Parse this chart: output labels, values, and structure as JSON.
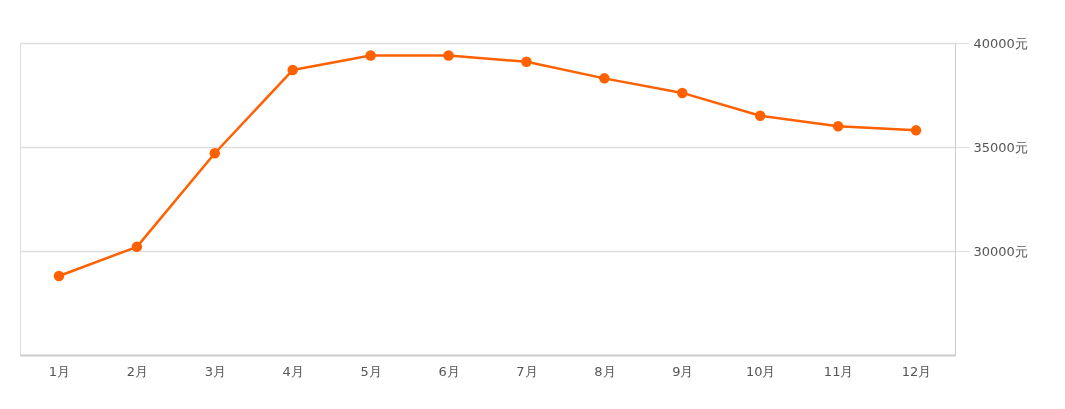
{
  "chart_data": {
    "type": "line",
    "categories": [
      "1月",
      "2月",
      "3月",
      "4月",
      "5月",
      "6月",
      "7月",
      "8月",
      "9月",
      "10月",
      "11月",
      "12月"
    ],
    "series": [
      {
        "color": "#ff6000",
        "values": [
          28800,
          30200,
          34700,
          38700,
          39400,
          39400,
          39100,
          38300,
          37600,
          36500,
          36000,
          35800
        ]
      }
    ],
    "ylim": [
      25000,
      40000
    ],
    "yticks": [
      {
        "value": 30000,
        "label": "30000元"
      },
      {
        "value": 35000,
        "label": "35000元"
      },
      {
        "value": 40000,
        "label": "40000元"
      }
    ],
    "grid": "y",
    "marker": "circle",
    "line_style": "solid",
    "legend": false
  }
}
